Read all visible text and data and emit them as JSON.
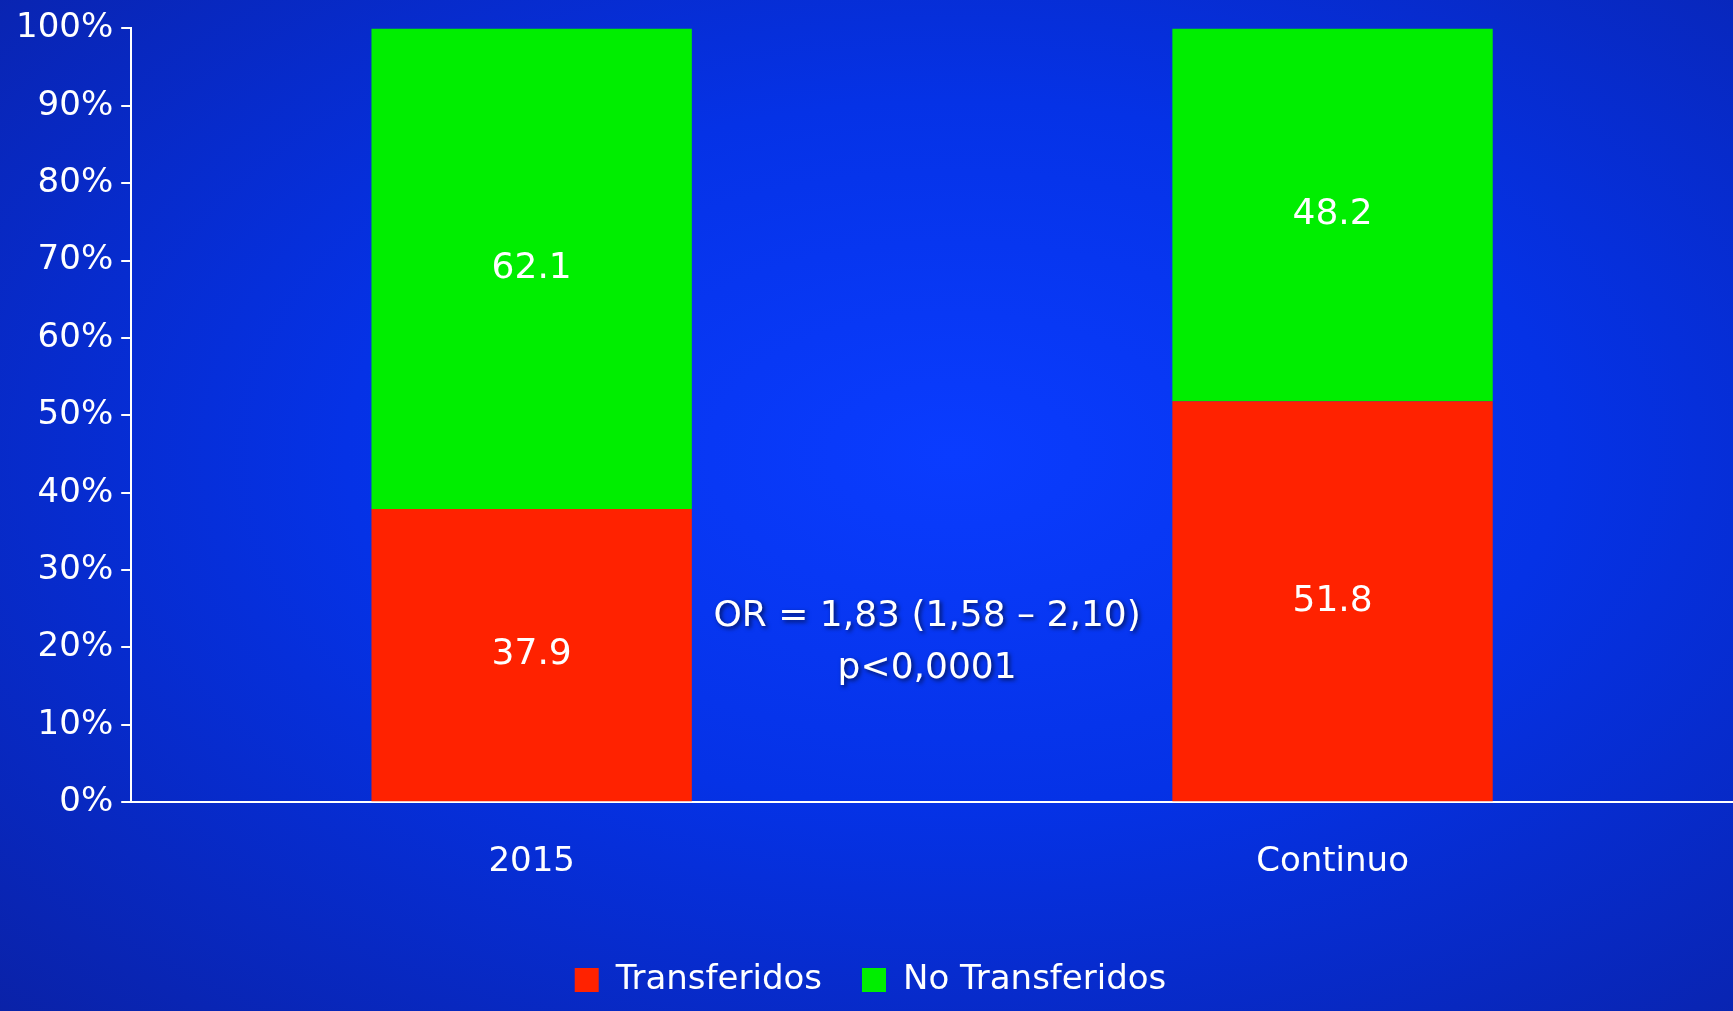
{
  "chart_data": {
    "type": "bar",
    "stacked": true,
    "categories": [
      "2015",
      "Continuo"
    ],
    "series": [
      {
        "name": "Transferidos",
        "color": "#ff2200",
        "values": [
          37.9,
          51.8
        ]
      },
      {
        "name": "No Transferidos",
        "color": "#00ee00",
        "values": [
          62.1,
          48.2
        ]
      }
    ],
    "ylim": [
      0,
      100
    ],
    "yticks": [
      {
        "value": 0,
        "label": "0%"
      },
      {
        "value": 10,
        "label": "10%"
      },
      {
        "value": 20,
        "label": "20%"
      },
      {
        "value": 30,
        "label": "30%"
      },
      {
        "value": 40,
        "label": "40%"
      },
      {
        "value": 50,
        "label": "50%"
      },
      {
        "value": 60,
        "label": "60%"
      },
      {
        "value": 70,
        "label": "70%"
      },
      {
        "value": 80,
        "label": "80%"
      },
      {
        "value": 90,
        "label": "90%"
      },
      {
        "value": 100,
        "label": "100%"
      }
    ],
    "data_labels": true,
    "grid": false,
    "legend": "bottom",
    "annotations": [
      "OR = 1,83 (1,58 – 2,10)",
      "p<0,0001"
    ]
  }
}
